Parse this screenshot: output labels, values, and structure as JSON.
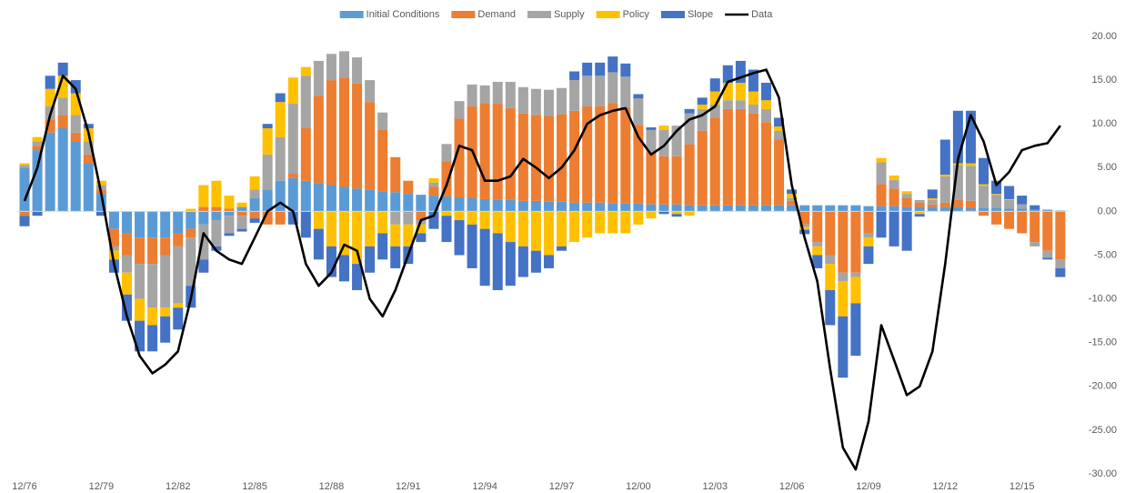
{
  "chart_data": {
    "type": "bar",
    "stacked": true,
    "categories": [
      "12/76",
      null,
      null,
      null,
      null,
      null,
      "12/79",
      null,
      null,
      null,
      null,
      null,
      "12/82",
      null,
      null,
      null,
      null,
      null,
      "12/85",
      null,
      null,
      null,
      null,
      null,
      "12/88",
      null,
      null,
      null,
      null,
      null,
      "12/91",
      null,
      null,
      null,
      null,
      null,
      "12/94",
      null,
      null,
      null,
      null,
      null,
      "12/97",
      null,
      null,
      null,
      null,
      null,
      "12/00",
      null,
      null,
      null,
      null,
      null,
      "12/03",
      null,
      null,
      null,
      null,
      null,
      "12/06",
      null,
      null,
      null,
      null,
      null,
      "12/09",
      null,
      null,
      null,
      null,
      null,
      "12/12",
      null,
      null,
      null,
      null,
      null,
      "12/15",
      null,
      null,
      null
    ],
    "series": [
      {
        "name": "Initial Conditions",
        "color": "#5b9bd5",
        "values": [
          5,
          7,
          9,
          9.5,
          8,
          5.5,
          2,
          -2,
          -2.5,
          -3,
          -3,
          -3,
          -2.5,
          -2,
          -1.5,
          -1,
          -0.5,
          0.5,
          1.5,
          2.5,
          3.5,
          3.8,
          3.5,
          3.2,
          3,
          2.8,
          2.6,
          2.5,
          2.3,
          2.2,
          2,
          1.9,
          1.8,
          1.7,
          1.6,
          1.5,
          1.4,
          1.3,
          1.3,
          1.2,
          1.2,
          1.1,
          1.1,
          1,
          1,
          1,
          0.9,
          0.9,
          0.9,
          0.8,
          0.8,
          0.8,
          0.7,
          0.7,
          0.7,
          0.7,
          0.7,
          0.7,
          0.7,
          0.7,
          0.7,
          0.7,
          0.7,
          0.7,
          0.7,
          0.7,
          0.6,
          0.6,
          0.6,
          0.5,
          0.5,
          0.5,
          0.5,
          0.5,
          0.4,
          0.4,
          0.4,
          0.3,
          0.3,
          0.2,
          0.2,
          0.1
        ]
      },
      {
        "name": "Demand",
        "color": "#ed7d31",
        "values": [
          -0.5,
          0.5,
          1.5,
          1.5,
          1,
          1,
          0.5,
          -2,
          -2.5,
          -3,
          -3,
          -2,
          -1.5,
          -1,
          0.5,
          0.5,
          0.3,
          -0.5,
          -0.8,
          -1.5,
          -1.5,
          0.5,
          6,
          10,
          12,
          12.5,
          12,
          10,
          7,
          4,
          1.5,
          -1,
          1,
          4,
          9,
          10.5,
          11,
          11,
          10.5,
          10,
          9.8,
          9.8,
          10,
          10.5,
          11,
          11,
          11.5,
          11,
          9,
          6,
          5.5,
          5.5,
          7,
          8.5,
          10,
          11,
          11,
          10.5,
          9.5,
          7.5,
          0.5,
          -1.5,
          -3.5,
          -5,
          -7,
          -7,
          -2.5,
          2.5,
          2,
          1,
          0.5,
          0.3,
          0.5,
          0.8,
          0.8,
          -0.5,
          -1.5,
          -2,
          -2.5,
          -3.5,
          -4.5,
          -5.5
        ]
      },
      {
        "name": "Supply",
        "color": "#a5a5a5",
        "values": [
          0.3,
          0.5,
          1.5,
          2,
          2,
          1.5,
          0.5,
          -0.5,
          -2,
          -4,
          -5,
          -6,
          -6.5,
          -5.5,
          -4,
          -3,
          -2,
          -1.5,
          1,
          4,
          5,
          8,
          6,
          4,
          3,
          3,
          3,
          2.5,
          2,
          -1.5,
          -1.5,
          -0.5,
          0.5,
          2,
          2,
          2.5,
          2,
          2.5,
          3,
          3,
          3,
          3,
          3,
          3.5,
          3.5,
          3.5,
          3.5,
          3.5,
          3,
          2.5,
          3,
          3.5,
          3.5,
          2.5,
          1.5,
          1,
          1,
          1,
          1.5,
          1,
          0.3,
          -0.3,
          -0.5,
          -1,
          -1,
          -0.5,
          -0.5,
          2.5,
          1,
          0.5,
          0.3,
          0.5,
          3,
          4,
          4,
          2.5,
          1.5,
          1,
          0.5,
          -0.5,
          -0.8,
          -1
        ]
      },
      {
        "name": "Policy",
        "color": "#ffc000",
        "values": [
          0.2,
          0.5,
          2,
          2.5,
          2.5,
          1.5,
          0.5,
          -1,
          -2.5,
          -2.5,
          -2,
          -1,
          -0.5,
          0.3,
          2.5,
          3,
          1.5,
          0.5,
          1.5,
          3,
          4,
          3,
          1,
          -2,
          -4,
          -5,
          -6,
          -4,
          -2.5,
          -2.5,
          -2.5,
          -1,
          0.5,
          -0.5,
          -1,
          -1.5,
          -2,
          -2.5,
          -3.5,
          -4,
          -4.5,
          -5,
          -4,
          -3.5,
          -3,
          -2.5,
          -2.5,
          -2.5,
          -1.5,
          -0.8,
          0.5,
          -0.3,
          -0.5,
          0.5,
          1.5,
          2,
          2,
          1.5,
          1,
          0.5,
          0.5,
          -0.3,
          -1,
          -3,
          -4,
          -3,
          -1,
          0.5,
          0.5,
          0.3,
          -0.3,
          0.2,
          0.2,
          0.2,
          0.3,
          0.2,
          0.1,
          0.1,
          0,
          0,
          0,
          0
        ]
      },
      {
        "name": "Slope",
        "color": "#4472c4",
        "values": [
          -1.2,
          -0.5,
          1.5,
          1.5,
          1.5,
          0.5,
          -0.5,
          -1.5,
          -3,
          -3.5,
          -3,
          -3,
          -2.5,
          -2.5,
          -1.5,
          -0.5,
          -0.3,
          -0.3,
          -0.5,
          0.5,
          1,
          -1.5,
          -3,
          -3.5,
          -3.5,
          -3,
          -3,
          -3,
          -3,
          -2.5,
          -2,
          -1,
          -2,
          -3,
          -4,
          -5,
          -6.5,
          -6.5,
          -5,
          -3.5,
          -2.5,
          -1.5,
          -0.5,
          1,
          1.5,
          1.5,
          1.8,
          1.5,
          0.5,
          0.3,
          -0.3,
          -0.3,
          0.5,
          0.8,
          1.5,
          2,
          2.5,
          2.5,
          2,
          1,
          0.5,
          -0.5,
          -1.5,
          -4,
          -7,
          -6,
          -2,
          -3,
          -4,
          -4.5,
          -0.3,
          1,
          4,
          6,
          6,
          3,
          1.5,
          1.5,
          1,
          0.5,
          -0.2,
          -1
        ]
      },
      {
        "name": "Data",
        "color": "#000000",
        "type": "line",
        "values": [
          1.2,
          5,
          11,
          15.5,
          14,
          9,
          2,
          -6,
          -12,
          -16.5,
          -18.5,
          -17.5,
          -16,
          -10,
          -2.5,
          -4.5,
          -5.5,
          -6,
          -3,
          0,
          1,
          0,
          -6,
          -8.5,
          -7,
          -3.8,
          -4.5,
          -10,
          -12,
          -9,
          -5,
          -1,
          -0.5,
          3,
          7.5,
          7,
          3.5,
          3.5,
          4,
          6,
          5,
          3.8,
          5,
          7,
          10,
          11,
          11.5,
          11.8,
          8.5,
          6.5,
          7.5,
          9.2,
          10.5,
          11,
          12,
          14.8,
          15.3,
          15.8,
          16.2,
          13,
          3,
          -3,
          -8,
          -18,
          -27,
          -29.5,
          -24,
          -13,
          -17,
          -21,
          -20,
          -16,
          -6,
          6,
          11,
          8,
          3,
          4.5,
          7,
          7.5,
          7.8,
          9.8
        ]
      }
    ],
    "ylim": [
      -30,
      20
    ],
    "yticks": [
      {
        "value": 20,
        "label": "20.00"
      },
      {
        "value": 15,
        "label": "15.00"
      },
      {
        "value": 10,
        "label": "10.00"
      },
      {
        "value": 5,
        "label": "5.00"
      },
      {
        "value": 0,
        "label": "0.00"
      },
      {
        "value": -5,
        "label": "-5.00"
      },
      {
        "value": -10,
        "label": "-10.00"
      },
      {
        "value": -15,
        "label": "-15.00"
      },
      {
        "value": -20,
        "label": "-20.00"
      },
      {
        "value": -25,
        "label": "-25.00"
      },
      {
        "value": -30,
        "label": "-30.00"
      }
    ],
    "legend": "top"
  }
}
